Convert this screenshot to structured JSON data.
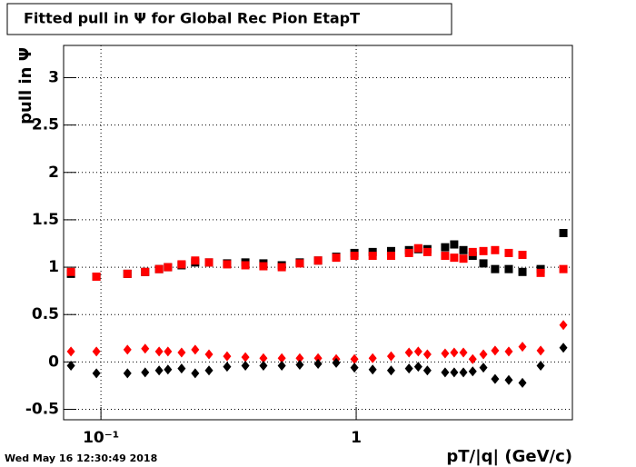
{
  "chart_data": {
    "type": "scatter",
    "title": "Fitted pull in  Ψ  for Global Rec Pion EtapT",
    "x_label": "pT/|q| (GeV/c)",
    "y_label": "pull in  Ψ",
    "timestamp": "Wed May 16 12:30:49 2018",
    "xscale": "log",
    "grid": true,
    "xlim": [
      0.0714,
      7.03
    ],
    "ylim": [
      -0.61,
      3.34
    ],
    "xticks": [
      {
        "value": 0.1,
        "label": "10⁻¹"
      },
      1
    ],
    "yticks": [
      -0.5,
      0,
      0.5,
      1,
      1.5,
      2,
      2.5,
      3
    ],
    "x": [
      0.0763,
      0.096,
      0.127,
      0.149,
      0.169,
      0.183,
      0.207,
      0.234,
      0.265,
      0.312,
      0.368,
      0.433,
      0.511,
      0.601,
      0.709,
      0.835,
      0.984,
      1.16,
      1.37,
      1.61,
      1.75,
      1.9,
      2.23,
      2.42,
      2.63,
      2.86,
      3.15,
      3.5,
      3.96,
      4.48,
      5.28,
      6.48
    ],
    "series": [
      {
        "color": "#000000",
        "marker": "square",
        "values": [
          0.93,
          0.9,
          0.93,
          0.95,
          0.98,
          1.0,
          1.02,
          1.05,
          1.05,
          1.04,
          1.05,
          1.04,
          1.02,
          1.05,
          1.07,
          1.11,
          1.15,
          1.16,
          1.17,
          1.18,
          1.19,
          1.19,
          1.21,
          1.24,
          1.18,
          1.12,
          1.04,
          0.98,
          0.98,
          0.95,
          0.98,
          1.36
        ]
      },
      {
        "color": "#ff0000",
        "marker": "square",
        "values": [
          0.95,
          0.9,
          0.93,
          0.95,
          0.98,
          1.0,
          1.03,
          1.07,
          1.05,
          1.03,
          1.02,
          1.01,
          1.0,
          1.04,
          1.07,
          1.1,
          1.12,
          1.12,
          1.12,
          1.15,
          1.2,
          1.16,
          1.12,
          1.1,
          1.09,
          1.16,
          1.17,
          1.18,
          1.15,
          1.13,
          0.94,
          0.98
        ]
      },
      {
        "color": "#ff0000",
        "marker": "diamond",
        "values": [
          0.11,
          0.11,
          0.13,
          0.14,
          0.11,
          0.11,
          0.1,
          0.13,
          0.08,
          0.06,
          0.05,
          0.04,
          0.04,
          0.04,
          0.04,
          0.03,
          0.03,
          0.04,
          0.06,
          0.1,
          0.11,
          0.08,
          0.09,
          0.1,
          0.1,
          0.03,
          0.08,
          0.12,
          0.11,
          0.16,
          0.12,
          0.39
        ]
      },
      {
        "color": "#000000",
        "marker": "diamond",
        "values": [
          -0.04,
          -0.12,
          -0.12,
          -0.11,
          -0.09,
          -0.08,
          -0.07,
          -0.12,
          -0.09,
          -0.05,
          -0.04,
          -0.04,
          -0.04,
          -0.03,
          -0.02,
          -0.01,
          -0.06,
          -0.08,
          -0.09,
          -0.07,
          -0.05,
          -0.09,
          -0.11,
          -0.11,
          -0.11,
          -0.1,
          -0.06,
          -0.18,
          -0.19,
          -0.22,
          -0.04,
          0.15
        ]
      }
    ]
  }
}
